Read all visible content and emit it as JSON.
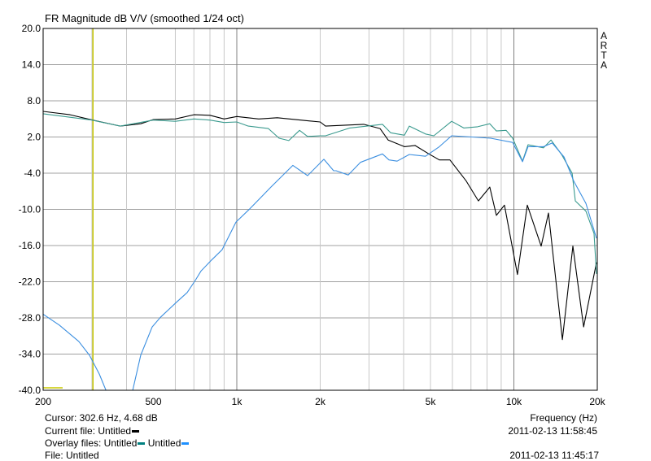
{
  "chart_data": {
    "type": "line",
    "title": "FR Magnitude dB V/V (smoothed 1/24 oct)",
    "xlabel": "Frequency (Hz)",
    "ylabel": "",
    "xscale": "log",
    "xlim": [
      200,
      20000
    ],
    "ylim": [
      -40,
      20
    ],
    "grid": true,
    "y_ticks": [
      20,
      14,
      8,
      2,
      -4,
      -10,
      -16,
      -22,
      -28,
      -34,
      -40
    ],
    "y_tick_labels": [
      "20.0",
      "14.0",
      "8.0",
      "2.0",
      "-4.0",
      "-10.0",
      "-16.0",
      "-22.0",
      "-28.0",
      "-34.0",
      "-40.0"
    ],
    "x_ticks": [
      200,
      500,
      1000,
      2000,
      5000,
      10000,
      20000
    ],
    "x_tick_labels": [
      "200",
      "500",
      "1k",
      "2k",
      "5k",
      "10k",
      "20k"
    ],
    "x_minor_grid": [
      300,
      400,
      600,
      700,
      800,
      900,
      3000,
      4000,
      6000,
      7000,
      8000,
      9000
    ],
    "x_major_grid": [
      1000,
      10000
    ],
    "cursor_freq": 302.6,
    "side_label": [
      "A",
      "R",
      "T",
      "A"
    ],
    "series": [
      {
        "name": "Current file: Untitled",
        "color": "#000000",
        "x": [
          200,
          250,
          302,
          380,
          450,
          500,
          600,
          700,
          800,
          900,
          1000,
          1200,
          1400,
          1700,
          2000,
          2090,
          2872,
          3288,
          3518,
          4027,
          4398,
          4932,
          5383,
          5876,
          6730,
          7448,
          8186,
          8648,
          9248,
          10300,
          11180,
          12540,
          13330,
          14960,
          16330,
          17850,
          19860
        ],
        "y": [
          6.25,
          5.7,
          4.8,
          3.8,
          4.2,
          4.9,
          5.0,
          5.7,
          5.6,
          5.0,
          5.4,
          5.0,
          5.2,
          4.8,
          4.5,
          3.8,
          4.1,
          3.4,
          1.5,
          0.4,
          0.6,
          -0.8,
          -1.8,
          -1.8,
          -5.3,
          -8.6,
          -6.3,
          -11.0,
          -9.3,
          -20.8,
          -9.3,
          -16.1,
          -10.6,
          -31.6,
          -16.1,
          -29.5,
          -18.8
        ]
      },
      {
        "name": "Overlay: Untitled",
        "color": "#3a9a8e",
        "x": [
          200,
          300,
          380,
          500,
          600,
          700,
          800,
          900,
          1000,
          1100,
          1300,
          1421,
          1541,
          1684,
          1800,
          2000,
          2090,
          2560,
          3354,
          3590,
          4027,
          4194,
          4799,
          5140,
          5963,
          6593,
          7398,
          8186,
          8648,
          9376,
          9900,
          10740,
          11250,
          12790,
          13610,
          14860,
          16230,
          16660,
          18190,
          19460,
          19860
        ],
        "y": [
          5.85,
          4.8,
          3.8,
          4.8,
          4.6,
          5.0,
          4.8,
          4.4,
          4.5,
          3.8,
          3.4,
          1.8,
          1.4,
          3.1,
          2.1,
          2.2,
          2.2,
          3.5,
          4.1,
          2.7,
          2.3,
          3.8,
          2.5,
          2.2,
          4.6,
          3.5,
          3.7,
          4.2,
          3.0,
          3.1,
          1.8,
          -2.0,
          0.7,
          0.2,
          1.5,
          -0.9,
          -4.0,
          -8.6,
          -10.3,
          -14.0,
          -20.7
        ]
      },
      {
        "name": "Overlay: Untitled",
        "color": "#3c8fe0",
        "x": [
          200,
          229,
          269,
          294,
          319,
          337,
          350,
          405,
          421,
          450,
          495,
          530,
          606,
          662,
          708,
          743,
          811,
          885,
          993,
          1114,
          1328,
          1594,
          1801,
          2062,
          2236,
          2282,
          2524,
          2794,
          3354,
          3542,
          3790,
          4194,
          4799,
          5383,
          5963,
          7063,
          8245,
          9900,
          10740,
          11250,
          12790,
          13750,
          15170,
          16440,
          18190,
          19860
        ],
        "y": [
          -27.4,
          -29.2,
          -31.9,
          -34.2,
          -37.3,
          -40,
          -44,
          -44,
          -40,
          -34.2,
          -29.5,
          -27.9,
          -25.4,
          -23.8,
          -21.8,
          -20.2,
          -18.4,
          -16.7,
          -12.1,
          -9.9,
          -6.3,
          -2.7,
          -4.4,
          -1.7,
          -3.6,
          -3.6,
          -4.3,
          -2.2,
          -0.8,
          -1.8,
          -2.0,
          -0.9,
          -1.2,
          0.4,
          2.2,
          2.0,
          1.8,
          1.1,
          -2.1,
          0.4,
          0.4,
          1.0,
          -1.3,
          -5.3,
          -9.0,
          -14.8
        ]
      }
    ]
  },
  "footer": {
    "cursor": "Cursor: 302.6 Hz, 4.68 dB",
    "xlabel": "Frequency (Hz)",
    "current_file_label": "Current file: Untitled",
    "current_date": "2011-02-13  11:58:45",
    "overlay_label": "Overlay files: Untitled",
    "overlay_second": " Untitled",
    "file_label": "File: Untitled",
    "file_date": "2011-02-13  11:45:17"
  },
  "colors": {
    "cursor": "#c8c800",
    "major_grid": "#808080",
    "minor_grid": "#c8c8c8",
    "h_grid": "#a0a0a0",
    "legend_teal": "#008080",
    "legend_blue": "#1e90ff"
  }
}
